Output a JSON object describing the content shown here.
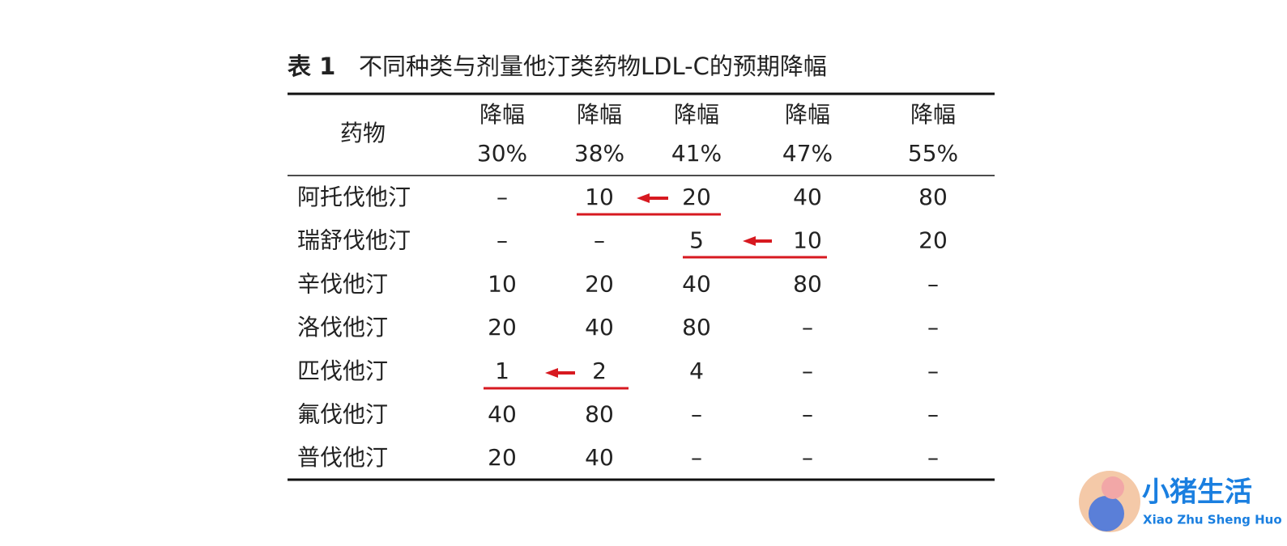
{
  "table": {
    "title_label": "表 1",
    "title": "不同种类与剂量他汀类药物LDL-C的预期降幅",
    "drug_header": "药物",
    "columns": [
      {
        "label": "降幅",
        "value": "30%"
      },
      {
        "label": "降幅",
        "value": "38%"
      },
      {
        "label": "降幅",
        "value": "41%"
      },
      {
        "label": "降幅",
        "value": "47%"
      },
      {
        "label": "降幅",
        "value": "55%"
      }
    ],
    "rows": [
      {
        "drug": "阿托伐他汀",
        "cells": [
          "–",
          "10",
          "20",
          "40",
          "80"
        ]
      },
      {
        "drug": "瑞舒伐他汀",
        "cells": [
          "–",
          "–",
          "5",
          "10",
          "20"
        ]
      },
      {
        "drug": "辛伐他汀",
        "cells": [
          "10",
          "20",
          "40",
          "80",
          "–"
        ]
      },
      {
        "drug": "洛伐他汀",
        "cells": [
          "20",
          "40",
          "80",
          "–",
          "–"
        ]
      },
      {
        "drug": "匹伐他汀",
        "cells": [
          "1",
          "2",
          "4",
          "–",
          "–"
        ]
      },
      {
        "drug": "氟伐他汀",
        "cells": [
          "40",
          "80",
          "–",
          "–",
          "–"
        ]
      },
      {
        "drug": "普伐他汀",
        "cells": [
          "20",
          "40",
          "–",
          "–",
          "–"
        ]
      }
    ]
  },
  "watermark": {
    "name": "小猪生活",
    "pinyin": "Xiao Zhu Sheng Huo"
  }
}
